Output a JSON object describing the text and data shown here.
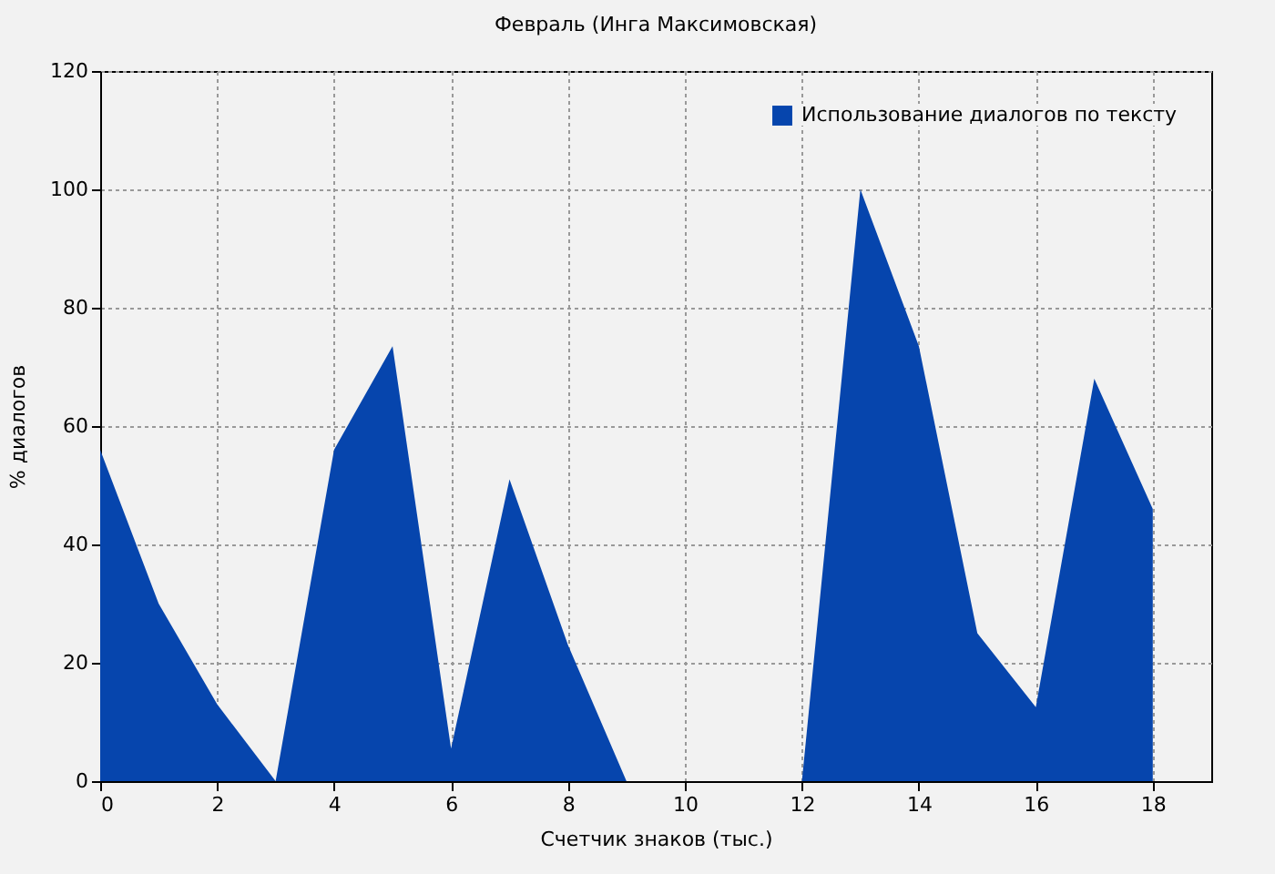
{
  "chart_data": {
    "type": "area",
    "title": "Февраль (Инга Максимовская)",
    "xlabel": "Счетчик знаков (тыс.)",
    "ylabel": "% диалогов",
    "x": [
      0,
      1,
      2,
      3,
      4,
      5,
      6,
      7,
      8,
      9,
      10,
      11,
      12,
      13,
      14,
      15,
      16,
      17,
      18
    ],
    "series": [
      {
        "name": "Использование диалогов по тексту",
        "color": "#0645ad",
        "values": [
          56,
          30,
          13,
          0,
          56,
          73.5,
          5.5,
          51,
          23,
          0,
          0,
          0,
          0,
          100,
          73.5,
          25,
          12.5,
          68,
          46
        ]
      }
    ],
    "xlim": [
      0,
      19
    ],
    "xticks": [
      0,
      2,
      4,
      6,
      8,
      10,
      12,
      14,
      16,
      18
    ],
    "ylim": [
      0,
      120
    ],
    "yticks": [
      0,
      20,
      40,
      60,
      80,
      100,
      120
    ],
    "grid": true,
    "legend": "top right"
  }
}
